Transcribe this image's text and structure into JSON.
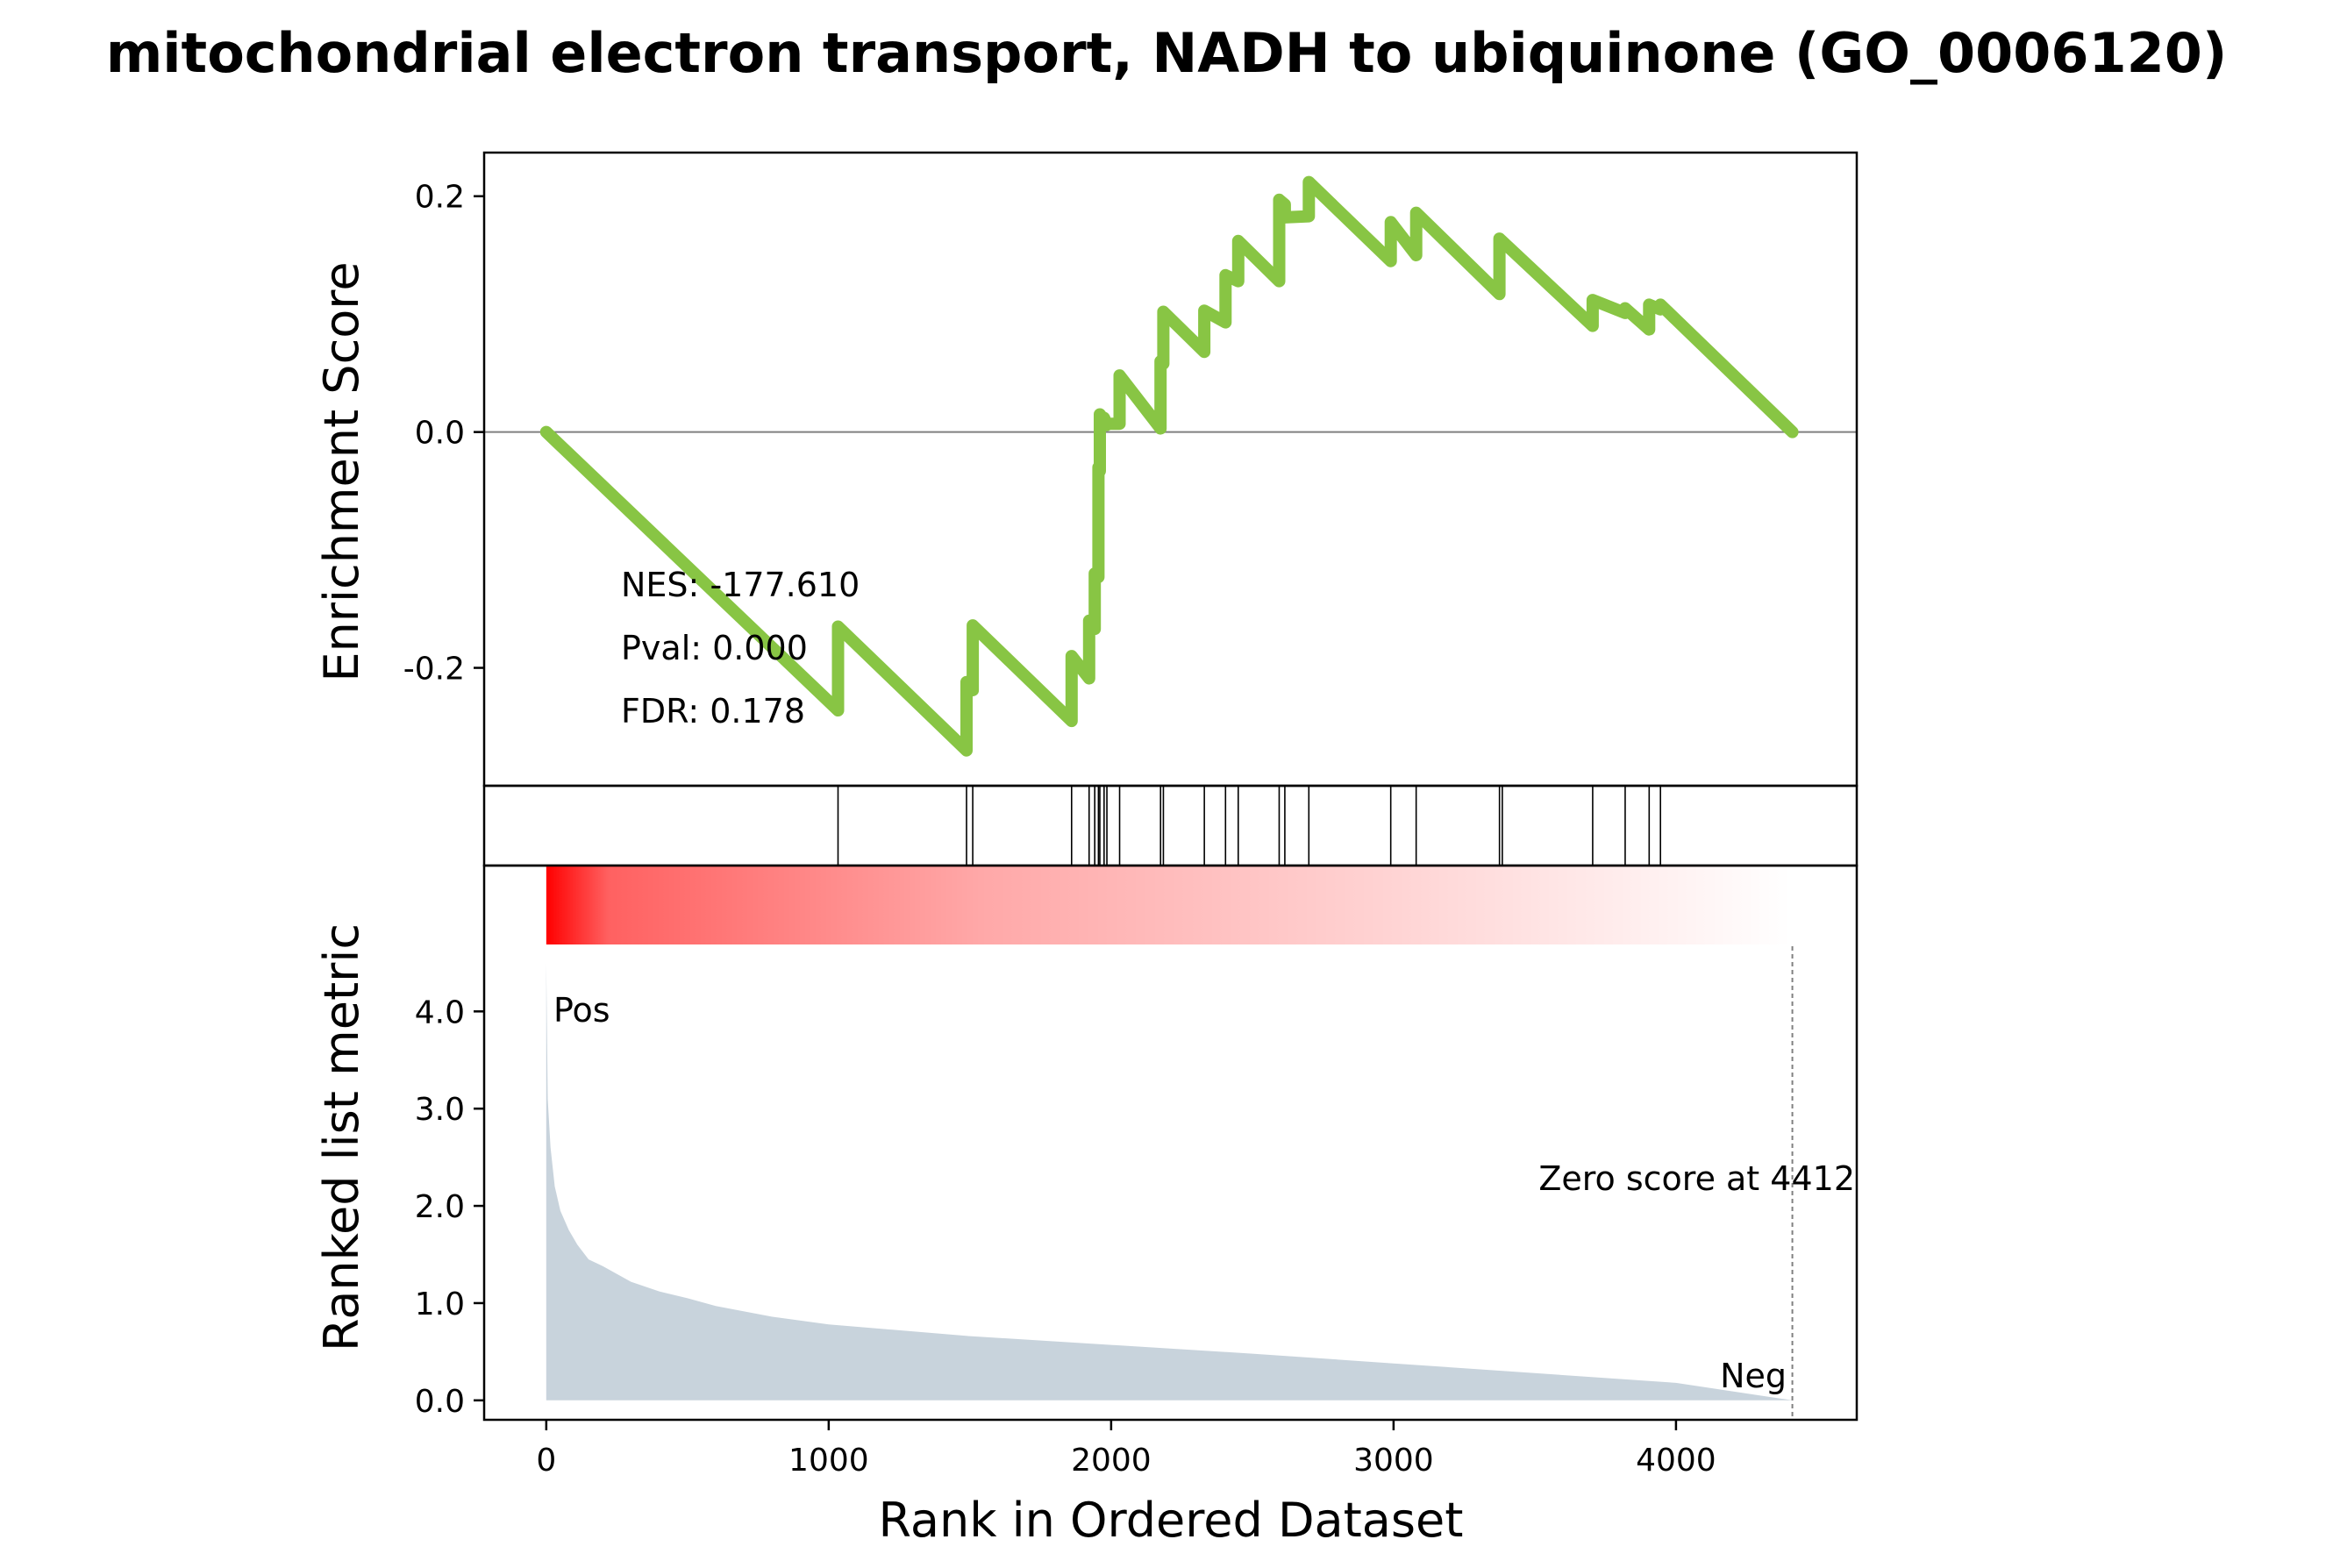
{
  "chart_data": {
    "type": "line",
    "title": "mitochondrial electron transport, NADH to ubiquinone (GO_0006120)",
    "xlabel": "Rank in Ordered Dataset",
    "xlim": [
      -220,
      4640
    ],
    "xticks": [
      0,
      1000,
      2000,
      3000,
      4000
    ],
    "xtick_labels": [
      "0",
      "1000",
      "2000",
      "3000",
      "4000"
    ],
    "es_panel": {
      "ylabel": "Enrichment Score",
      "ylim": [
        -0.3,
        0.237
      ],
      "yticks": [
        0.2,
        0.0,
        -0.2
      ],
      "ytick_labels": [
        "0.2",
        "0.0",
        "-0.2"
      ],
      "line_color": "#88c544",
      "zero_line": true,
      "series": [
        {
          "x": [
            0,
            1033,
            1033,
            1488,
            1488,
            1510,
            1510,
            1860,
            1860,
            1922,
            1922,
            1942,
            1942,
            1955,
            1955,
            1960,
            1960,
            1975,
            1975,
            1985,
            1985,
            2030,
            2030,
            2175,
            2175,
            2185,
            2185,
            2330,
            2330,
            2405,
            2405,
            2450,
            2450,
            2595,
            2595,
            2615,
            2615,
            2700,
            2700,
            2990,
            2990,
            3080,
            3080,
            3375,
            3375,
            3705,
            3705,
            3820,
            3820,
            3905,
            3905,
            3945,
            3945,
            4412
          ],
          "y": [
            0,
            -0.236,
            -0.165,
            -0.27,
            -0.212,
            -0.219,
            -0.164,
            -0.245,
            -0.19,
            -0.209,
            -0.16,
            -0.167,
            -0.12,
            -0.123,
            -0.03,
            -0.033,
            0.015,
            0.01,
            0.012,
            0.006,
            0.007,
            0.007,
            0.048,
            0.003,
            0.06,
            0.058,
            0.102,
            0.068,
            0.103,
            0.093,
            0.133,
            0.128,
            0.162,
            0.128,
            0.197,
            0.193,
            0.182,
            0.183,
            0.212,
            0.145,
            0.178,
            0.15,
            0.186,
            0.117,
            0.164,
            0.09,
            0.112,
            0.101,
            0.105,
            0.087,
            0.108,
            0.104,
            0.108,
            0
          ]
        }
      ],
      "stats": [
        {
          "label": "NES: -177.610"
        },
        {
          "label": "Pval: 0.000"
        },
        {
          "label": "FDR: 0.178"
        }
      ]
    },
    "hits_panel": {
      "hit_positions": [
        1033,
        1488,
        1510,
        1860,
        1922,
        1942,
        1955,
        1960,
        1975,
        1985,
        2030,
        2175,
        2185,
        2330,
        2405,
        2450,
        2595,
        2615,
        2700,
        2990,
        3080,
        3375,
        3385,
        3705,
        3820,
        3905,
        3945
      ]
    },
    "rank_panel": {
      "ylabel": "Ranked list metric",
      "ylim": [
        -0.2,
        5.5
      ],
      "yticks": [
        0.0,
        1.0,
        2.0,
        3.0,
        4.0
      ],
      "ytick_labels": [
        "0.0",
        "1.0",
        "2.0",
        "3.0",
        "4.0"
      ],
      "fill_color": "#c8d3dc",
      "gradient_color": "#ff0000",
      "metric_curve": {
        "x": [
          0,
          5,
          15,
          30,
          50,
          80,
          110,
          150,
          200,
          300,
          400,
          500,
          600,
          800,
          1000,
          1500,
          2000,
          2500,
          3000,
          3500,
          4000,
          4412
        ],
        "y": [
          4.5,
          3.1,
          2.6,
          2.2,
          1.95,
          1.75,
          1.6,
          1.45,
          1.38,
          1.22,
          1.12,
          1.05,
          0.97,
          0.86,
          0.78,
          0.66,
          0.57,
          0.48,
          0.38,
          0.28,
          0.18,
          0.0
        ]
      },
      "zero_score_position": 4412,
      "zero_score_label": "Zero score at 4412",
      "pos_label": "Pos",
      "pos_color": "#ff0000",
      "neg_label": "Neg",
      "neg_color": "#0000ff"
    }
  }
}
